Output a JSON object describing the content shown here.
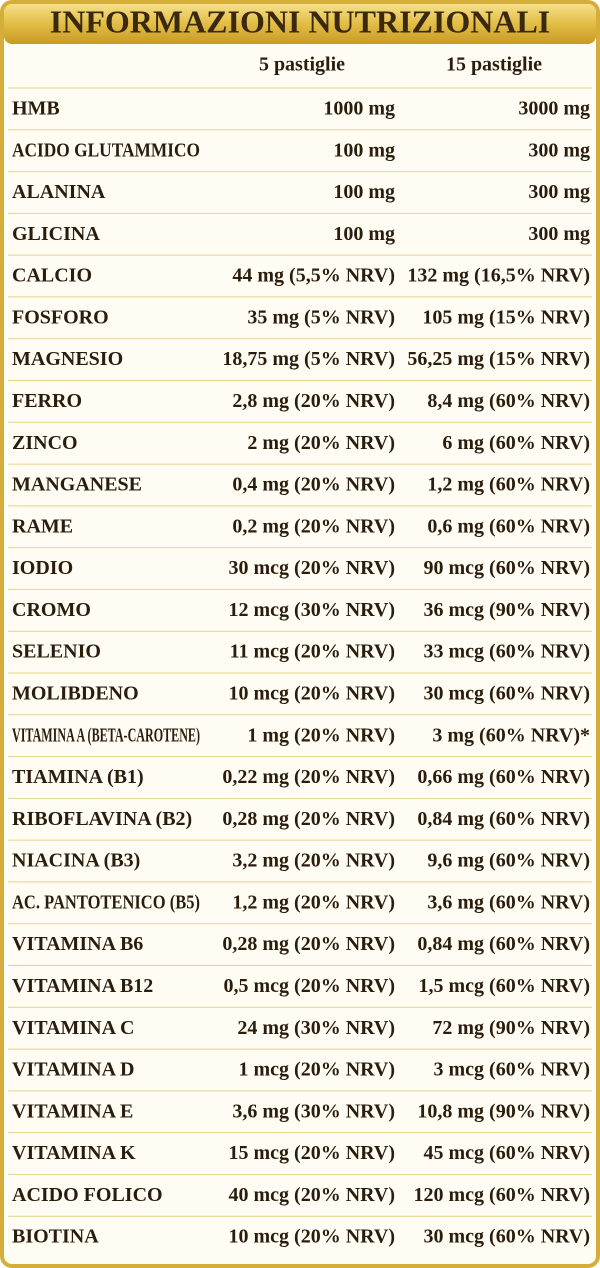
{
  "title": "INFORMAZIONI NUTRIZIONALI",
  "table": {
    "columns": [
      "5 pastiglie",
      "15 pastiglie"
    ],
    "rows": [
      [
        "HMB",
        "1000 mg",
        "3000 mg"
      ],
      [
        "ACIDO GLUTAMMICO",
        "100 mg",
        "300 mg"
      ],
      [
        "ALANINA",
        "100 mg",
        "300 mg"
      ],
      [
        "GLICINA",
        "100 mg",
        "300 mg"
      ],
      [
        "CALCIO",
        "44 mg (5,5% NRV)",
        "132 mg (16,5% NRV)"
      ],
      [
        "FOSFORO",
        "35 mg (5% NRV)",
        "105 mg (15% NRV)"
      ],
      [
        "MAGNESIO",
        "18,75 mg (5% NRV)",
        "56,25 mg (15% NRV)"
      ],
      [
        "FERRO",
        "2,8 mg (20% NRV)",
        "8,4 mg (60% NRV)"
      ],
      [
        "ZINCO",
        "2 mg (20% NRV)",
        "6 mg (60% NRV)"
      ],
      [
        "MANGANESE",
        "0,4 mg (20% NRV)",
        "1,2 mg (60% NRV)"
      ],
      [
        "RAME",
        "0,2 mg (20% NRV)",
        "0,6 mg (60% NRV)"
      ],
      [
        "IODIO",
        "30 mcg (20% NRV)",
        "90 mcg (60% NRV)"
      ],
      [
        "CROMO",
        "12 mcg (30% NRV)",
        "36 mcg (90% NRV)"
      ],
      [
        "SELENIO",
        "11 mcg (20% NRV)",
        "33 mcg (60% NRV)"
      ],
      [
        "MOLIBDENO",
        "10 mcg (20% NRV)",
        "30 mcg (60% NRV)"
      ],
      [
        "VITAMINA A (BETA-CAROTENE)",
        "1 mg (20% NRV)",
        "3 mg (60% NRV)*"
      ],
      [
        "TIAMINA (B1)",
        "0,22 mg (20% NRV)",
        "0,66 mg (60% NRV)"
      ],
      [
        "RIBOFLAVINA (B2)",
        "0,28 mg (20% NRV)",
        "0,84 mg (60% NRV)"
      ],
      [
        "NIACINA (B3)",
        "3,2 mg (20% NRV)",
        "9,6 mg (60% NRV)"
      ],
      [
        "AC. PANTOTENICO (B5)",
        "1,2 mg (20% NRV)",
        "3,6 mg (60% NRV)"
      ],
      [
        "VITAMINA B6",
        "0,28 mg (20% NRV)",
        "0,84 mg (60% NRV)"
      ],
      [
        "VITAMINA B12",
        "0,5 mcg (20% NRV)",
        "1,5 mcg (60% NRV)"
      ],
      [
        "VITAMINA C",
        "24 mg (30% NRV)",
        "72 mg (90% NRV)"
      ],
      [
        "VITAMINA D",
        "1 mcg (20% NRV)",
        "3 mcg (60% NRV)"
      ],
      [
        "VITAMINA E",
        "3,6 mg (30% NRV)",
        "10,8 mg (90% NRV)"
      ],
      [
        "VITAMINA K",
        "15 mcg (20% NRV)",
        "45 mcg (60% NRV)"
      ],
      [
        "ACIDO FOLICO",
        "40 mcg (20% NRV)",
        "120 mcg (60% NRV)"
      ],
      [
        "BIOTINA",
        "10 mcg (20% NRV)",
        "30 mcg (60% NRV)"
      ]
    ]
  }
}
